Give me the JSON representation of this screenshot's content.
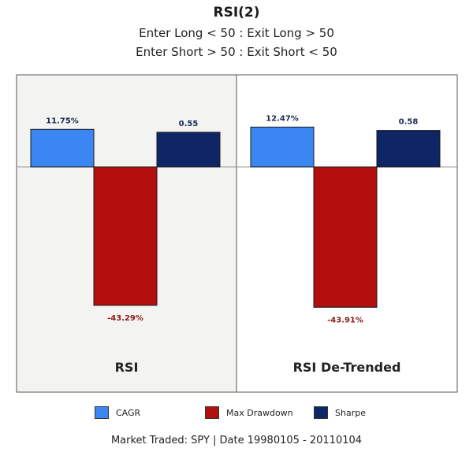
{
  "header": {
    "title": "RSI(2)",
    "subtitle_1": "Enter Long < 50 : Exit Long > 50",
    "subtitle_2": "Enter Short > 50 : Exit Short < 50"
  },
  "footer": "Market Traded: SPY | Date 19980105 - 20110104",
  "colors": {
    "cagr": "#3a86f2",
    "max_drawdown": "#b40f0f",
    "sharpe": "#0e2566",
    "cagr_label": "#1a2a55",
    "drawdown_label": "#8b1a1a",
    "panel_shaded": "#f3f3f1",
    "panel_plain": "#ffffff",
    "panel_border": "#555555"
  },
  "chart_data": {
    "type": "bar",
    "panels": [
      "RSI",
      "RSI De-Trended"
    ],
    "series": [
      {
        "name": "CAGR",
        "values": [
          11.75,
          12.47
        ],
        "labels": [
          "11.75%",
          "12.47%"
        ]
      },
      {
        "name": "Max Drawdown",
        "values": [
          -43.29,
          -43.91
        ],
        "labels": [
          "-43.29%",
          "-43.91%"
        ]
      },
      {
        "name": "Sharpe",
        "values": [
          0.55,
          0.58
        ],
        "labels": [
          "0.55",
          "0.58"
        ]
      }
    ],
    "legend_position": "bottom",
    "grid": false
  }
}
